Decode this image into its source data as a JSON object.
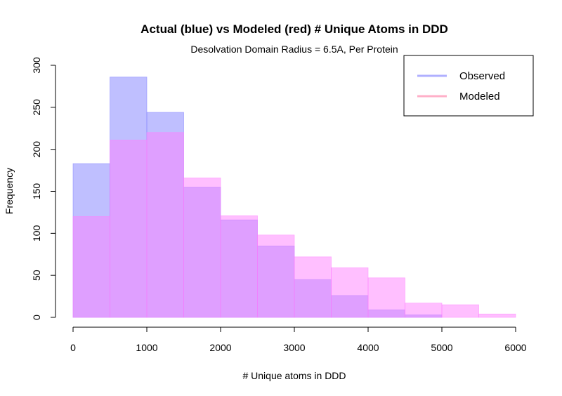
{
  "chart_data": {
    "type": "bar",
    "title": "Actual (blue) vs Modeled (red) # Unique Atoms in DDD",
    "subtitle": "Desolvation Domain Radius = 6.5A, Per Protein",
    "xlabel": "# Unique atoms in DDD",
    "ylabel": "Frequency",
    "xlim": [
      0,
      6000
    ],
    "ylim": [
      0,
      300
    ],
    "x_ticks": [
      0,
      1000,
      2000,
      3000,
      4000,
      5000,
      6000
    ],
    "y_ticks": [
      0,
      50,
      100,
      150,
      200,
      250,
      300
    ],
    "bin_edges": [
      0,
      500,
      1000,
      1500,
      2000,
      2500,
      3000,
      3500,
      4000,
      4500,
      5000,
      5500,
      6000
    ],
    "grid": false,
    "legend_position": "top-right",
    "series": [
      {
        "name": "Observed",
        "color": "#8080ff",
        "values": [
          183,
          286,
          244,
          155,
          116,
          85,
          45,
          26,
          9,
          3,
          0,
          0
        ]
      },
      {
        "name": "Modeled",
        "color": "#ff80ff",
        "values": [
          120,
          211,
          220,
          166,
          121,
          98,
          72,
          59,
          47,
          17,
          15,
          4
        ]
      }
    ],
    "legend": [
      {
        "label": "Observed",
        "color": "#b0b0ff"
      },
      {
        "label": "Modeled",
        "color": "#ffb0c8"
      }
    ]
  }
}
